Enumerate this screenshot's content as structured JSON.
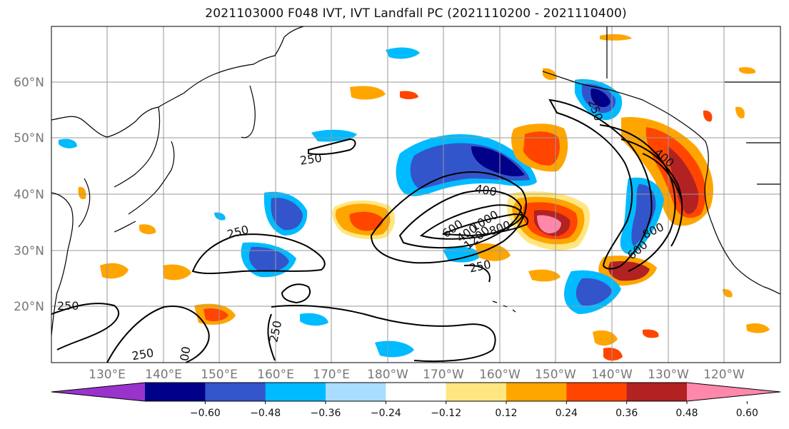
{
  "title": "2021103000 F048 IVT, IVT Landfall PC (2021110200 - 2021110400)",
  "lat_labels": [
    "60°N",
    "50°N",
    "40°N",
    "30°N",
    "20°N"
  ],
  "lon_labels": [
    "130°E",
    "140°E",
    "150°E",
    "160°E",
    "170°E",
    "180°W",
    "170°W",
    "160°W",
    "150°W",
    "140°W",
    "130°W",
    "120°W"
  ],
  "colorbar": {
    "colors": [
      "#9933cc",
      "#000088",
      "#3355cc",
      "#00bbff",
      "#aaddff",
      "#ffffff",
      "#ffe680",
      "#ffa500",
      "#ff4500",
      "#b22222",
      "#ff88aa"
    ],
    "tick_labels": [
      "−0.60",
      "−0.48",
      "−0.36",
      "−0.24",
      "−0.12",
      "0.12",
      "0.24",
      "0.36",
      "0.48",
      "0.60"
    ]
  },
  "contour_labels": [
    "250",
    "250",
    "250",
    "250",
    "250",
    "250",
    "250",
    "400",
    "400",
    "400",
    "600",
    "800",
    "800",
    "1000",
    "1200",
    "600",
    "00"
  ]
}
